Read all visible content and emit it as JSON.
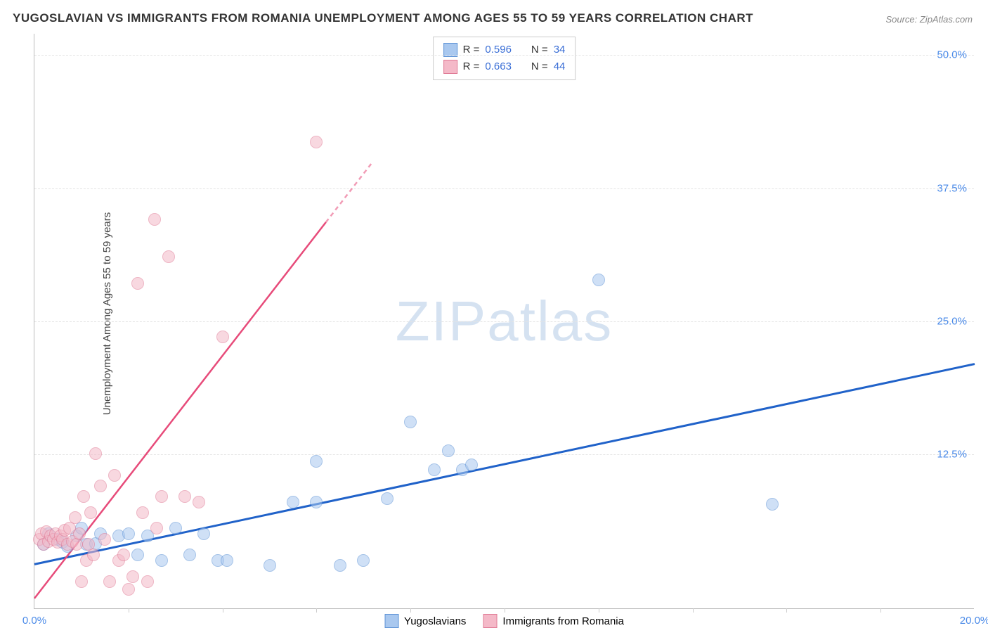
{
  "title": "YUGOSLAVIAN VS IMMIGRANTS FROM ROMANIA UNEMPLOYMENT AMONG AGES 55 TO 59 YEARS CORRELATION CHART",
  "source": "Source: ZipAtlas.com",
  "yaxis_label": "Unemployment Among Ages 55 to 59 years",
  "watermark": "ZIPatlas",
  "chart": {
    "type": "scatter",
    "xlim": [
      0,
      20
    ],
    "ylim": [
      -2,
      52
    ],
    "xtick_labels": [
      {
        "v": 0,
        "t": "0.0%"
      },
      {
        "v": 20,
        "t": "20.0%"
      }
    ],
    "ytick_labels": [
      {
        "v": 12.5,
        "t": "12.5%"
      },
      {
        "v": 25,
        "t": "25.0%"
      },
      {
        "v": 37.5,
        "t": "37.5%"
      },
      {
        "v": 50,
        "t": "50.0%"
      }
    ],
    "xtick_minor_step": 2,
    "grid_color": "#e4e4e4",
    "background": "#ffffff",
    "point_radius": 9,
    "point_opacity": 0.55,
    "series": [
      {
        "name": "Yugoslavians",
        "color_fill": "#a9c8ef",
        "color_stroke": "#5e93d6",
        "line_color": "#2062c9",
        "line_width": 3,
        "R": "0.596",
        "N": "34",
        "regression": {
          "x1": 0,
          "y1": 2.2,
          "x2": 20,
          "y2": 21.0,
          "dash_after_x": 20
        },
        "points": [
          [
            0.2,
            4.0
          ],
          [
            0.3,
            5.0
          ],
          [
            0.5,
            4.5
          ],
          [
            0.6,
            4.2
          ],
          [
            0.7,
            3.8
          ],
          [
            0.9,
            4.8
          ],
          [
            1.0,
            5.5
          ],
          [
            1.1,
            4.0
          ],
          [
            1.3,
            4.1
          ],
          [
            1.4,
            5.0
          ],
          [
            1.8,
            4.8
          ],
          [
            2.0,
            5.0
          ],
          [
            2.2,
            3.0
          ],
          [
            2.4,
            4.8
          ],
          [
            2.7,
            2.5
          ],
          [
            3.0,
            5.5
          ],
          [
            3.3,
            3.0
          ],
          [
            3.6,
            5.0
          ],
          [
            3.9,
            2.5
          ],
          [
            4.1,
            2.5
          ],
          [
            5.0,
            2.0
          ],
          [
            5.5,
            8.0
          ],
          [
            6.0,
            8.0
          ],
          [
            6.0,
            11.8
          ],
          [
            6.5,
            2.0
          ],
          [
            7.0,
            2.5
          ],
          [
            7.5,
            8.3
          ],
          [
            8.0,
            15.5
          ],
          [
            8.5,
            11.0
          ],
          [
            8.8,
            12.8
          ],
          [
            9.1,
            11.0
          ],
          [
            9.3,
            11.5
          ],
          [
            12.0,
            28.8
          ],
          [
            15.7,
            7.8
          ]
        ]
      },
      {
        "name": "Immigrants from Romania",
        "color_fill": "#f4b9c8",
        "color_stroke": "#e07a95",
        "line_color": "#e74b7a",
        "line_width": 2.5,
        "R": "0.663",
        "N": "44",
        "regression": {
          "x1": 0,
          "y1": -1.0,
          "x2": 7.2,
          "y2": 40.0,
          "dash_after_x": 6.2
        },
        "points": [
          [
            0.1,
            4.5
          ],
          [
            0.15,
            5.0
          ],
          [
            0.2,
            4.0
          ],
          [
            0.25,
            5.2
          ],
          [
            0.3,
            4.3
          ],
          [
            0.35,
            4.8
          ],
          [
            0.4,
            4.5
          ],
          [
            0.45,
            5.0
          ],
          [
            0.5,
            4.2
          ],
          [
            0.55,
            4.8
          ],
          [
            0.6,
            4.5
          ],
          [
            0.65,
            5.3
          ],
          [
            0.7,
            4.0
          ],
          [
            0.75,
            5.5
          ],
          [
            0.8,
            4.3
          ],
          [
            0.87,
            6.5
          ],
          [
            0.9,
            4.0
          ],
          [
            0.95,
            5.0
          ],
          [
            1.0,
            0.5
          ],
          [
            1.05,
            8.5
          ],
          [
            1.1,
            2.5
          ],
          [
            1.15,
            4.0
          ],
          [
            1.2,
            7.0
          ],
          [
            1.25,
            3.0
          ],
          [
            1.3,
            12.5
          ],
          [
            1.4,
            9.5
          ],
          [
            1.5,
            4.5
          ],
          [
            1.6,
            0.5
          ],
          [
            1.7,
            10.5
          ],
          [
            1.8,
            2.5
          ],
          [
            1.9,
            3.0
          ],
          [
            2.0,
            -0.2
          ],
          [
            2.1,
            1.0
          ],
          [
            2.2,
            28.5
          ],
          [
            2.3,
            7.0
          ],
          [
            2.4,
            0.5
          ],
          [
            2.55,
            34.5
          ],
          [
            2.6,
            5.5
          ],
          [
            2.7,
            8.5
          ],
          [
            2.85,
            31.0
          ],
          [
            3.2,
            8.5
          ],
          [
            3.5,
            8.0
          ],
          [
            4.0,
            23.5
          ],
          [
            6.0,
            41.8
          ]
        ]
      }
    ]
  },
  "legend_top": [
    {
      "swatch_fill": "#a9c8ef",
      "swatch_stroke": "#5e93d6",
      "R": "0.596",
      "N": "34"
    },
    {
      "swatch_fill": "#f4b9c8",
      "swatch_stroke": "#e07a95",
      "R": "0.663",
      "N": "44"
    }
  ],
  "legend_bottom": [
    {
      "swatch_fill": "#a9c8ef",
      "swatch_stroke": "#5e93d6",
      "label": "Yugoslavians"
    },
    {
      "swatch_fill": "#f4b9c8",
      "swatch_stroke": "#e07a95",
      "label": "Immigrants from Romania"
    }
  ]
}
